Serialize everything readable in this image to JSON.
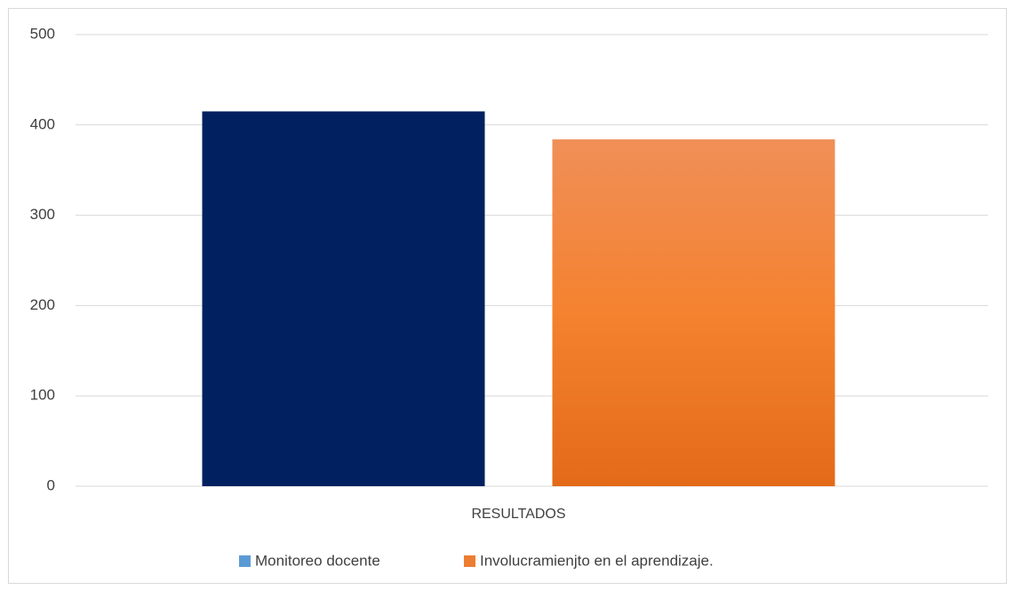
{
  "chart_data": {
    "type": "bar",
    "categories": [
      "RESULTADOS"
    ],
    "series": [
      {
        "name": "Monitoreo docente",
        "color": "#002060",
        "legend_color": "#5b9bd5",
        "values": [
          415
        ]
      },
      {
        "name": "Involucramienjto en el aprendizaje.",
        "color": "#ed7d31",
        "legend_color": "#ed7d31",
        "values": [
          384
        ]
      }
    ],
    "ylim": [
      0,
      500
    ],
    "yticks": [
      0,
      100,
      200,
      300,
      400,
      500
    ],
    "grid": true,
    "legend": "bottom"
  }
}
